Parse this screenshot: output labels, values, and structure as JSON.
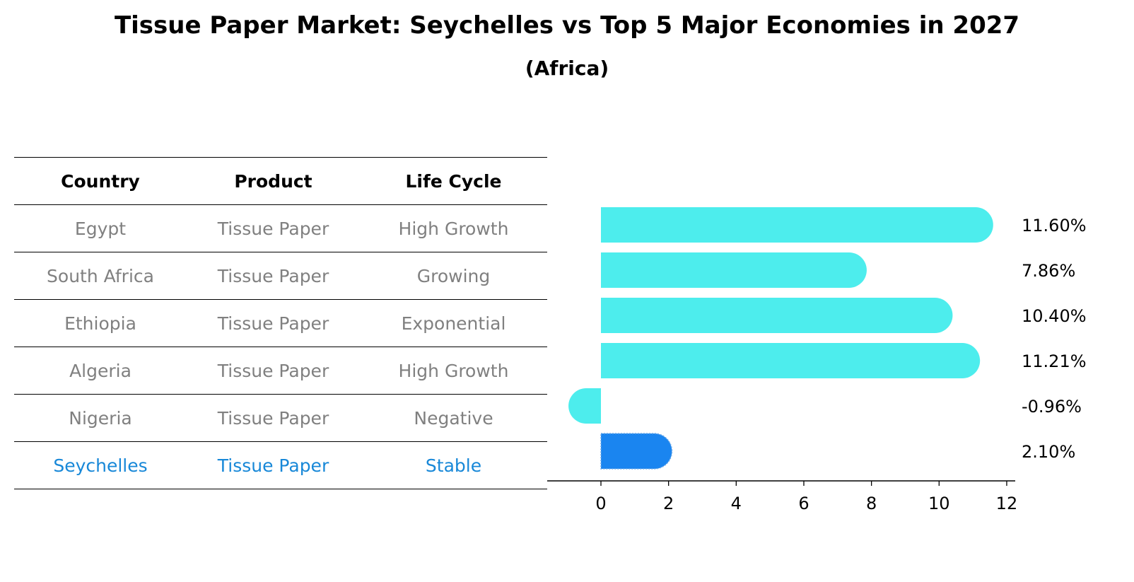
{
  "title": "Tissue Paper Market: Seychelles vs Top 5 Major Economies in 2027",
  "subtitle": "(Africa)",
  "table": {
    "headers": [
      "Country",
      "Product",
      "Life Cycle"
    ],
    "rows": [
      [
        "Egypt",
        "Tissue Paper",
        "High Growth"
      ],
      [
        "South Africa",
        "Tissue Paper",
        "Growing"
      ],
      [
        "Ethiopia",
        "Tissue Paper",
        "Exponential"
      ],
      [
        "Algeria",
        "Tissue Paper",
        "High Growth"
      ],
      [
        "Nigeria",
        "Tissue Paper",
        "Negative"
      ],
      [
        "Seychelles",
        "Tissue Paper",
        "Stable"
      ]
    ],
    "highlight_row": 5
  },
  "chart_data": {
    "type": "bar",
    "orientation": "horizontal",
    "categories": [
      "Egypt",
      "South Africa",
      "Ethiopia",
      "Algeria",
      "Nigeria",
      "Seychelles"
    ],
    "values": [
      11.6,
      7.86,
      10.4,
      11.21,
      -0.96,
      2.1
    ],
    "value_labels": [
      "11.60%",
      "7.86%",
      "10.40%",
      "11.21%",
      "-0.96%",
      "2.10%"
    ],
    "xlim": [
      -1.6,
      12.2
    ],
    "xticks": [
      0,
      2,
      4,
      6,
      8,
      10,
      12
    ],
    "colors": {
      "default": "#4deded",
      "highlight": "#1a85f0"
    },
    "highlight_index": 5,
    "grid": false
  }
}
